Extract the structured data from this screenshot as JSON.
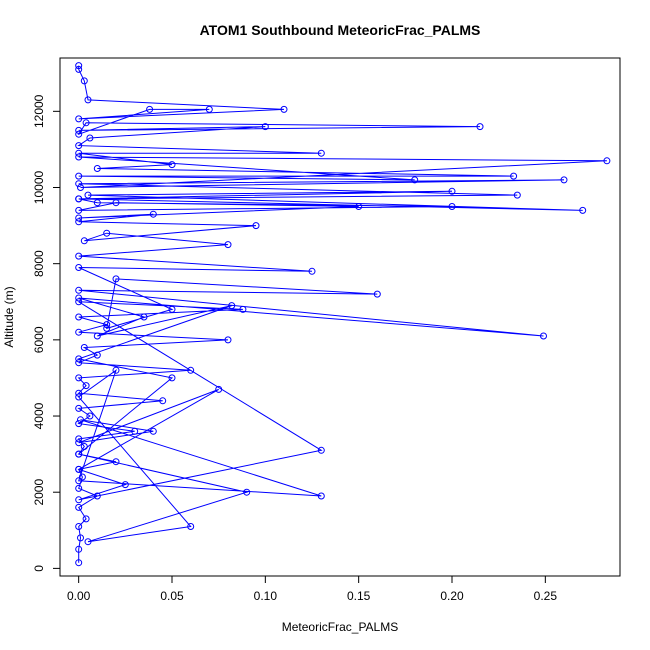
{
  "chart_data": {
    "type": "line",
    "title": "ATOM1 Southbound MeteoricFrac_PALMS",
    "xlabel": "MeteoricFrac_PALMS",
    "ylabel": "Altitude (m)",
    "xlim": [
      -0.01,
      0.29
    ],
    "ylim": [
      -200,
      13400
    ],
    "x_ticks": [
      {
        "value": 0.0,
        "label": "0.00"
      },
      {
        "value": 0.05,
        "label": "0.05"
      },
      {
        "value": 0.1,
        "label": "0.10"
      },
      {
        "value": 0.15,
        "label": "0.15"
      },
      {
        "value": 0.2,
        "label": "0.20"
      },
      {
        "value": 0.25,
        "label": "0.25"
      }
    ],
    "y_ticks": [
      {
        "value": 0,
        "label": "0"
      },
      {
        "value": 2000,
        "label": "2000"
      },
      {
        "value": 4000,
        "label": "4000"
      },
      {
        "value": 6000,
        "label": "6000"
      },
      {
        "value": 8000,
        "label": "8000"
      },
      {
        "value": 10000,
        "label": "10000"
      },
      {
        "value": 12000,
        "label": "12000"
      }
    ],
    "grid": false,
    "legend": "none",
    "series_color": "#0000ff",
    "series": [
      {
        "x": [
          0.0,
          0.0,
          0.001,
          0.0,
          0.004,
          0.0,
          0.01,
          0.0,
          0.002,
          0.0,
          0.02,
          0.0,
          0.003,
          0.0,
          0.03,
          0.0,
          0.006,
          0.0,
          0.045,
          0.0,
          0.004,
          0.0,
          0.06,
          0.0,
          0.01,
          0.003,
          0.08,
          0.0,
          0.015,
          0.0,
          0.088,
          0.0,
          0.13,
          0.0,
          0.025,
          0.0,
          0.075,
          0.0,
          0.04,
          0.001,
          0.13,
          0.0,
          0.02,
          0.0,
          0.06,
          0.005,
          0.09,
          0.0,
          0.05,
          0.0,
          0.082,
          0.01,
          0.035,
          0.0,
          0.249,
          0.0,
          0.16,
          0.02,
          0.015,
          0.05,
          0.0,
          0.125,
          0.0,
          0.08,
          0.015,
          0.003,
          0.095,
          0.0,
          0.04,
          0.0,
          0.15,
          0.02,
          0.0,
          0.2,
          0.01,
          0.0,
          0.27,
          0.005,
          0.2,
          0.0,
          0.235,
          0.0,
          0.26,
          0.001,
          0.283,
          0.0,
          0.18,
          0.0,
          0.233,
          0.01,
          0.05,
          0.0,
          0.13,
          0.0,
          0.006,
          0.1,
          0.0,
          0.215,
          0.004,
          0.0,
          0.038,
          0.07,
          0.0,
          0.11,
          0.005,
          0.003,
          0.0,
          0.0
        ],
        "y": [
          150,
          500,
          800,
          1100,
          1300,
          1600,
          1900,
          2100,
          2400,
          2600,
          2800,
          3000,
          3200,
          3400,
          3600,
          3800,
          4000,
          4200,
          4400,
          4600,
          4800,
          5000,
          5200,
          5400,
          5600,
          5800,
          6000,
          6200,
          6400,
          6600,
          6800,
          7000,
          3100,
          1800,
          2200,
          2600,
          4700,
          3300,
          3600,
          3900,
          1900,
          2300,
          5200,
          4500,
          1100,
          700,
          2000,
          3000,
          5000,
          5500,
          6900,
          6100,
          6600,
          7100,
          6100,
          7300,
          7200,
          7600,
          6300,
          6800,
          7900,
          7800,
          8200,
          8500,
          8800,
          8600,
          9000,
          9100,
          9300,
          9200,
          9500,
          9600,
          9400,
          9500,
          9600,
          9700,
          9400,
          9800,
          9900,
          9700,
          9800,
          10100,
          10200,
          10000,
          10700,
          10800,
          10200,
          10300,
          10300,
          10500,
          10600,
          10900,
          10900,
          11100,
          11300,
          11600,
          11500,
          11600,
          11700,
          11400,
          12050,
          12050,
          11800,
          12050,
          12300,
          12800,
          13100,
          13200
        ]
      }
    ]
  }
}
